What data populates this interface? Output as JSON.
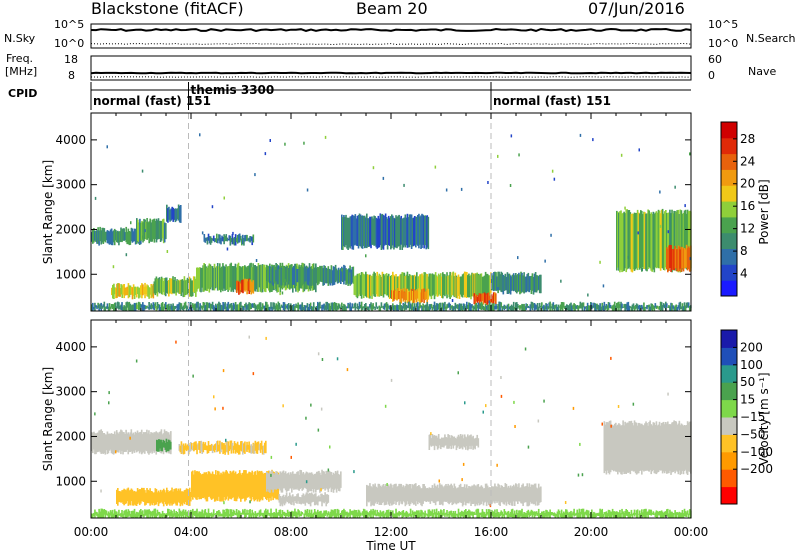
{
  "header": {
    "title": "Blackstone (fitACF)",
    "beam": "Beam 20",
    "date": "07/Jun/2016"
  },
  "status_panels": {
    "nsky_label": "N.Sky",
    "nsky_ticks": [
      "10^5",
      "10^0"
    ],
    "nsearch_label": "N.Search",
    "nsearch_ticks": [
      "10^5",
      "10^0"
    ],
    "freq_label_line1": "Freq.",
    "freq_label_line2": "[MHz]",
    "freq_ticks": [
      "18",
      "8"
    ],
    "nave_label": "Nave",
    "nave_ticks": [
      "60",
      "0"
    ],
    "cpid_label": "CPID",
    "cpid_segments": [
      {
        "label": "normal (fast) 151",
        "start_hour": 0
      },
      {
        "label": "themis 3300",
        "start_hour": 3.9
      },
      {
        "label": "normal (fast) 151",
        "start_hour": 16.0
      }
    ]
  },
  "colors": {
    "power_scale": [
      "#1a1aff",
      "#2244c8",
      "#2f6fa8",
      "#3c8c6e",
      "#4aa24e",
      "#8fcf3a",
      "#f0c818",
      "#f09a10",
      "#e8620c",
      "#e02a08",
      "#d00000"
    ],
    "velocity_scale": [
      "#ff0000",
      "#ff5a00",
      "#ff9a00",
      "#ffc226",
      "#c8c8c0",
      "#7ed84a",
      "#4aa24e",
      "#2a9a8c",
      "#1f4fb8",
      "#1a1aaa"
    ]
  },
  "chart_data": [
    {
      "type": "heatmap",
      "panel": "power",
      "xlabel": "",
      "ylabel": "Slant Range [km]",
      "xlim": [
        0,
        24
      ],
      "ylim": [
        180,
        4600
      ],
      "yticks": [
        1000,
        2000,
        3000,
        4000
      ],
      "xticks_hours": [
        0,
        4,
        8,
        12,
        16,
        20,
        24
      ],
      "colorbar": {
        "label": "Power [dB]",
        "ticks": [
          4,
          8,
          12,
          16,
          20,
          24,
          28
        ],
        "range": [
          0,
          31
        ]
      },
      "regions": [
        {
          "t0": 0.0,
          "t1": 2.0,
          "r0": 1700,
          "r1": 2000,
          "value": 9
        },
        {
          "t0": 1.8,
          "t1": 3.0,
          "r0": 1750,
          "r1": 2200,
          "value": 11
        },
        {
          "t0": 3.0,
          "t1": 3.6,
          "r0": 2200,
          "r1": 2500,
          "value": 6
        },
        {
          "t0": 4.5,
          "t1": 6.5,
          "r0": 1700,
          "r1": 1850,
          "value": 8
        },
        {
          "t0": 0.8,
          "t1": 2.5,
          "r0": 500,
          "r1": 750,
          "value": 18
        },
        {
          "t0": 2.5,
          "t1": 4.2,
          "r0": 550,
          "r1": 900,
          "value": 14
        },
        {
          "t0": 4.2,
          "t1": 9.0,
          "r0": 650,
          "r1": 1200,
          "value": 13
        },
        {
          "t0": 5.8,
          "t1": 6.5,
          "r0": 600,
          "r1": 850,
          "value": 24
        },
        {
          "t0": 7.0,
          "t1": 10.5,
          "r0": 800,
          "r1": 1150,
          "value": 10
        },
        {
          "t0": 10.0,
          "t1": 13.5,
          "r0": 1600,
          "r1": 2300,
          "value": 7
        },
        {
          "t0": 10.5,
          "t1": 16.0,
          "r0": 500,
          "r1": 1000,
          "value": 15
        },
        {
          "t0": 12.0,
          "t1": 13.5,
          "r0": 400,
          "r1": 650,
          "value": 22
        },
        {
          "t0": 15.3,
          "t1": 16.2,
          "r0": 350,
          "r1": 550,
          "value": 26
        },
        {
          "t0": 16.0,
          "t1": 18.0,
          "r0": 600,
          "r1": 1000,
          "value": 9
        },
        {
          "t0": 21.0,
          "t1": 24.0,
          "r0": 1100,
          "r1": 2400,
          "value": 14
        },
        {
          "t0": 23.0,
          "t1": 24.0,
          "r0": 1100,
          "r1": 1600,
          "value": 25
        },
        {
          "t0": 0.0,
          "t1": 24.0,
          "r0": 200,
          "r1": 330,
          "value": 10
        }
      ]
    },
    {
      "type": "heatmap",
      "panel": "velocity",
      "xlabel": "Time UT",
      "ylabel": "Slant Range [km]",
      "xlim": [
        0,
        24
      ],
      "ylim": [
        180,
        4600
      ],
      "yticks": [
        1000,
        2000,
        3000,
        4000
      ],
      "xticks": [
        "00:00",
        "04:00",
        "08:00",
        "12:00",
        "16:00",
        "20:00",
        "00:00"
      ],
      "colorbar": {
        "label": "Velocity [m s⁻¹]",
        "ticks": [
          "200",
          "100",
          "50",
          "15",
          "−15",
          "−50",
          "−100",
          "−200"
        ]
      },
      "regions": [
        {
          "t0": 0.0,
          "t1": 3.2,
          "r0": 1650,
          "r1": 2100,
          "value": 0
        },
        {
          "t0": 2.6,
          "t1": 3.2,
          "r0": 1700,
          "r1": 1900,
          "value": 60
        },
        {
          "t0": 3.5,
          "t1": 7.0,
          "r0": 1650,
          "r1": 1850,
          "value": -20
        },
        {
          "t0": 1.0,
          "t1": 4.0,
          "r0": 500,
          "r1": 800,
          "value": -40
        },
        {
          "t0": 4.0,
          "t1": 7.5,
          "r0": 600,
          "r1": 1200,
          "value": -40
        },
        {
          "t0": 7.0,
          "t1": 10.0,
          "r0": 800,
          "r1": 1200,
          "value": 0
        },
        {
          "t0": 7.5,
          "t1": 9.5,
          "r0": 500,
          "r1": 700,
          "value": 0
        },
        {
          "t0": 11.0,
          "t1": 18.0,
          "r0": 500,
          "r1": 900,
          "value": 0
        },
        {
          "t0": 13.5,
          "t1": 15.5,
          "r0": 1750,
          "r1": 2000,
          "value": 0
        },
        {
          "t0": 20.5,
          "t1": 24.0,
          "r0": 1200,
          "r1": 2300,
          "value": 0
        },
        {
          "t0": 0.0,
          "t1": 24.0,
          "r0": 200,
          "r1": 330,
          "value": 30
        }
      ]
    }
  ]
}
